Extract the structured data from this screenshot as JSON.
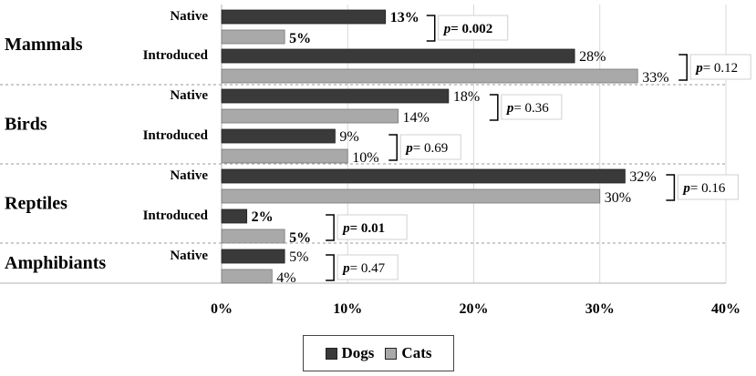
{
  "chart_data": {
    "type": "bar",
    "orientation": "horizontal",
    "groups": [
      {
        "name": "Mammals",
        "rows": [
          {
            "label": "Native",
            "dogs": 13,
            "cats": 5,
            "dogs_label": "13%",
            "cats_label": "5%",
            "bold_values": true,
            "p_prefix": "p",
            "p_value": "= 0.002",
            "p_bold": true
          },
          {
            "label": "Introduced",
            "dogs": 28,
            "cats": 33,
            "dogs_label": "28%",
            "cats_label": "33%",
            "bold_values": false,
            "p_prefix": "p",
            "p_value": "= 0.12",
            "p_bold": false
          }
        ]
      },
      {
        "name": "Birds",
        "rows": [
          {
            "label": "Native",
            "dogs": 18,
            "cats": 14,
            "dogs_label": "18%",
            "cats_label": "14%",
            "bold_values": false,
            "p_prefix": "p",
            "p_value": "= 0.36",
            "p_bold": false
          },
          {
            "label": "Introduced",
            "dogs": 9,
            "cats": 10,
            "dogs_label": "9%",
            "cats_label": "10%",
            "bold_values": false,
            "p_prefix": "p",
            "p_value": "= 0.69",
            "p_bold": false
          }
        ]
      },
      {
        "name": "Reptiles",
        "rows": [
          {
            "label": "Native",
            "dogs": 32,
            "cats": 30,
            "dogs_label": "32%",
            "cats_label": "30%",
            "bold_values": false,
            "p_prefix": "p",
            "p_value": "= 0.16",
            "p_bold": false
          },
          {
            "label": "Introduced",
            "dogs": 2,
            "cats": 5,
            "dogs_label": "2%",
            "cats_label": "5%",
            "bold_values": true,
            "p_prefix": "p",
            "p_value": "= 0.01",
            "p_bold": true
          }
        ]
      },
      {
        "name": "Amphibiants",
        "rows": [
          {
            "label": "Native",
            "dogs": 5,
            "cats": 4,
            "dogs_label": "5%",
            "cats_label": "4%",
            "bold_values": false,
            "p_prefix": "p",
            "p_value": "= 0.47",
            "p_bold": false
          }
        ]
      }
    ],
    "x_ticks": [
      "0%",
      "10%",
      "20%",
      "30%",
      "40%"
    ],
    "xlim": [
      0,
      40
    ],
    "series": [
      {
        "name": "Dogs",
        "color": "#3a3a3a"
      },
      {
        "name": "Cats",
        "color": "#a9a9a9"
      }
    ],
    "legend_position": "bottom-center",
    "grid": true
  },
  "legend": {
    "dogs_label": "Dogs",
    "cats_label": "Cats"
  }
}
